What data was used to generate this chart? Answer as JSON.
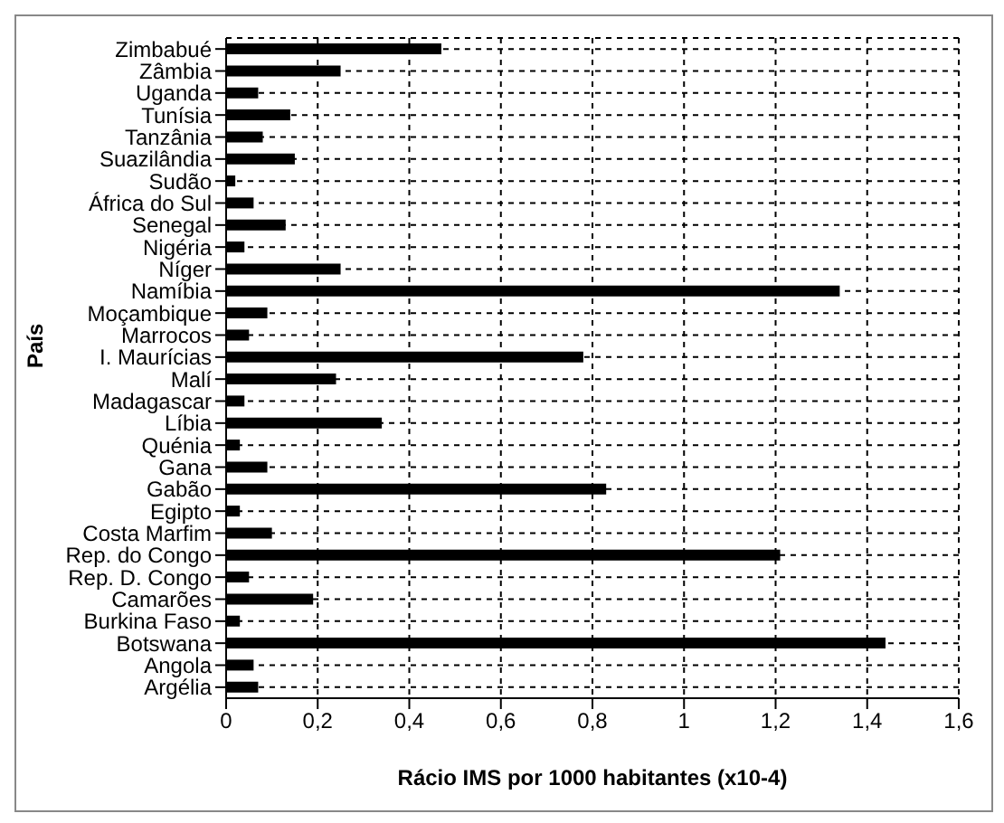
{
  "chart_data": {
    "type": "bar",
    "orientation": "horizontal",
    "xlabel": "Rácio IMS por 1000 habitantes (x10-4)",
    "ylabel": "País",
    "categories": [
      "Zimbabué",
      "Zâmbia",
      "Uganda",
      "Tunísia",
      "Tanzânia",
      "Suazilândia",
      "Sudão",
      "África do Sul",
      "Senegal",
      "Nigéria",
      "Níger",
      "Namíbia",
      "Moçambique",
      "Marrocos",
      "I. Maurícias",
      "Malí",
      "Madagascar",
      "Líbia",
      "Quénia",
      "Gana",
      "Gabão",
      "Egipto",
      "Costa Marfim",
      "Rep. do Congo",
      "Rep. D. Congo",
      "Camarões",
      "Burkina Faso",
      "Botswana",
      "Angola",
      "Argélia"
    ],
    "series": [
      {
        "color": "#000000",
        "values": [
          0.47,
          0.25,
          0.07,
          0.14,
          0.08,
          0.15,
          0.02,
          0.06,
          0.13,
          0.04,
          0.25,
          1.34,
          0.09,
          0.05,
          0.78,
          0.24,
          0.04,
          0.34,
          0.03,
          0.09,
          0.83,
          0.03,
          0.1,
          1.21,
          0.05,
          0.19,
          0.03,
          1.44,
          0.06,
          0.07
        ]
      }
    ],
    "xlim": [
      0,
      1.6
    ],
    "xticks": [
      0,
      {
        "value": 0.2,
        "label": "0,2"
      },
      {
        "value": 0.4,
        "label": "0,4"
      },
      {
        "value": 0.6,
        "label": "0,6"
      },
      {
        "value": 0.8,
        "label": "0,8"
      },
      1,
      {
        "value": 1.2,
        "label": "1,2"
      },
      {
        "value": 1.4,
        "label": "1,4"
      },
      {
        "value": 1.6,
        "label": "1,6"
      }
    ],
    "grid": true
  }
}
